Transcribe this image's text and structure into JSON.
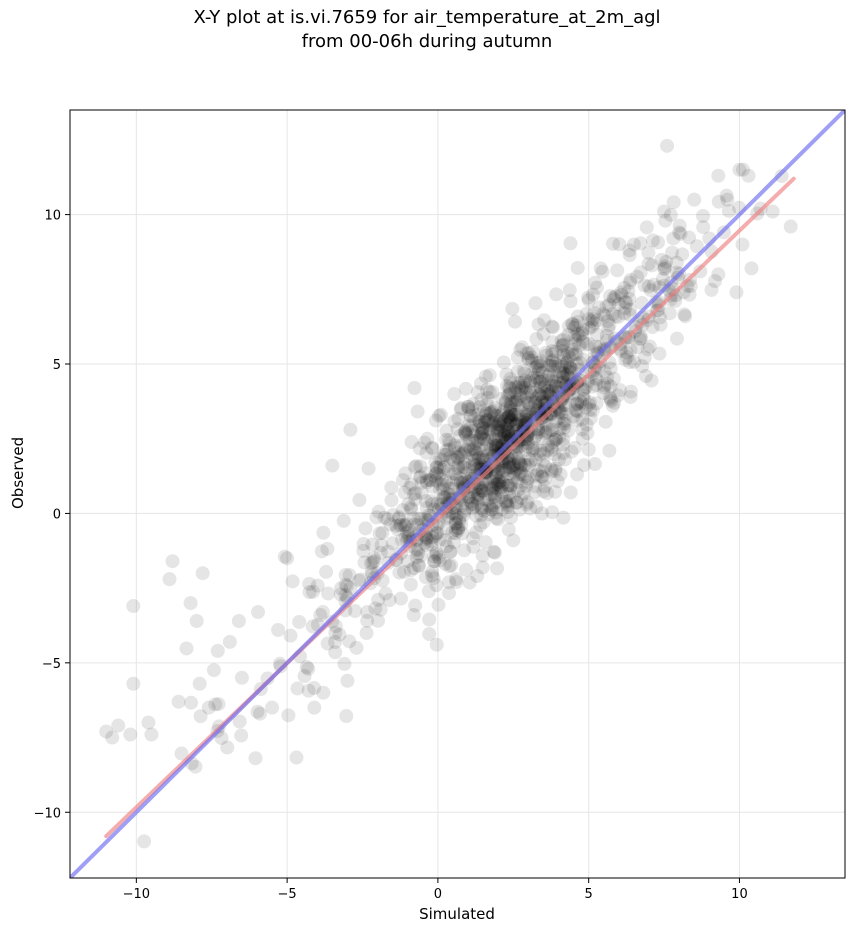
{
  "chart_data": {
    "type": "scatter",
    "title": "X-Y plot at is.vi.7659 for air_temperature_at_2m_agl",
    "subtitle": "from 00-06h during autumn",
    "xlabel": "Simulated",
    "ylabel": "Observed",
    "xlim": [
      -12.2,
      13.5
    ],
    "ylim": [
      -12.2,
      13.5
    ],
    "xticks": [
      -10,
      -5,
      0,
      5,
      10
    ],
    "yticks": [
      -10,
      -5,
      0,
      5,
      10
    ],
    "xtick_labels": [
      "−10",
      "−5",
      "0",
      "5",
      "10"
    ],
    "ytick_labels": [
      "−10",
      "−5",
      "0",
      "5",
      "10"
    ],
    "grid": true,
    "colors": {
      "points": "#000000",
      "fit_line": "#f08080",
      "identity_line": "#6b6bef"
    },
    "points_summary": {
      "sample_points": [
        [
          -11.0,
          -7.3
        ],
        [
          -10.8,
          -7.5
        ],
        [
          -10.6,
          -7.1
        ],
        [
          -10.2,
          -7.4
        ],
        [
          -10.1,
          -3.1
        ],
        [
          -10.1,
          -5.7
        ],
        [
          -9.6,
          -7.0
        ],
        [
          -9.5,
          -7.4
        ],
        [
          -8.8,
          -1.6
        ],
        [
          -8.9,
          -2.2
        ],
        [
          -8.2,
          -3.0
        ],
        [
          -8.0,
          -3.6
        ],
        [
          -7.9,
          -5.7
        ],
        [
          -8.6,
          -6.3
        ],
        [
          -7.6,
          -6.5
        ],
        [
          -7.3,
          -4.6
        ],
        [
          -6.6,
          -3.6
        ],
        [
          -6.9,
          -4.3
        ],
        [
          -6.5,
          -5.5
        ],
        [
          -7.8,
          -2.0
        ],
        [
          -5.9,
          -6.7
        ],
        [
          -5.5,
          -6.5
        ],
        [
          -5.0,
          -1.5
        ],
        [
          -5.3,
          -3.9
        ],
        [
          -4.3,
          -5.2
        ],
        [
          -4.1,
          -6.5
        ],
        [
          -3.8,
          -6.0
        ],
        [
          -3.9,
          -3.4
        ],
        [
          -3.4,
          -4.0
        ],
        [
          -3.0,
          -5.6
        ],
        [
          -2.7,
          -4.5
        ],
        [
          -2.9,
          -2.5
        ],
        [
          -3.5,
          1.6
        ],
        [
          -2.9,
          2.8
        ],
        [
          -2.3,
          1.5
        ],
        [
          -2.4,
          -0.5
        ],
        [
          -2.0,
          -2.0
        ],
        [
          -1.6,
          -2.9
        ],
        [
          -1.5,
          -1.0
        ],
        [
          -1.1,
          0.7
        ],
        [
          -1.0,
          -1.6
        ],
        [
          -0.8,
          -3.4
        ],
        [
          -0.6,
          1.2
        ],
        [
          -0.4,
          -0.6
        ],
        [
          -0.3,
          -2.6
        ],
        [
          0.1,
          3.3
        ],
        [
          0.1,
          0.3
        ],
        [
          0.3,
          -1.1
        ],
        [
          0.5,
          1.8
        ],
        [
          0.6,
          -2.2
        ],
        [
          0.9,
          0.9
        ],
        [
          1.2,
          2.6
        ],
        [
          1.4,
          -0.4
        ],
        [
          1.6,
          1.5
        ],
        [
          1.8,
          3.4
        ],
        [
          2.0,
          -0.2
        ],
        [
          2.1,
          0.9
        ],
        [
          2.2,
          2.0
        ],
        [
          2.4,
          4.5
        ],
        [
          2.5,
          -0.9
        ],
        [
          2.7,
          1.3
        ],
        [
          2.9,
          3.0
        ],
        [
          3.0,
          5.2
        ],
        [
          3.2,
          0.7
        ],
        [
          3.4,
          2.1
        ],
        [
          3.5,
          6.0
        ],
        [
          3.7,
          4.0
        ],
        [
          3.9,
          1.5
        ],
        [
          4.1,
          5.6
        ],
        [
          4.2,
          3.1
        ],
        [
          4.4,
          7.1
        ],
        [
          4.6,
          4.4
        ],
        [
          4.8,
          2.5
        ],
        [
          5.0,
          6.5
        ],
        [
          5.2,
          4.8
        ],
        [
          5.4,
          8.2
        ],
        [
          5.6,
          5.5
        ],
        [
          5.8,
          3.6
        ],
        [
          6.0,
          7.0
        ],
        [
          6.2,
          5.9
        ],
        [
          6.5,
          9.0
        ],
        [
          6.7,
          6.4
        ],
        [
          6.9,
          4.6
        ],
        [
          7.1,
          8.3
        ],
        [
          7.3,
          6.8
        ],
        [
          7.6,
          12.3
        ],
        [
          7.5,
          10.1
        ],
        [
          7.8,
          7.5
        ],
        [
          8.0,
          9.4
        ],
        [
          8.2,
          6.6
        ],
        [
          8.5,
          10.5
        ],
        [
          8.7,
          8.1
        ],
        [
          9.0,
          9.2
        ],
        [
          9.3,
          8.0
        ],
        [
          9.6,
          10.5
        ],
        [
          9.9,
          7.4
        ],
        [
          10.1,
          9.0
        ],
        [
          10.4,
          8.2
        ],
        [
          10.7,
          10.2
        ],
        [
          11.1,
          10.1
        ],
        [
          11.7,
          9.6
        ],
        [
          10.0,
          11.5
        ],
        [
          9.3,
          11.3
        ],
        [
          10.3,
          11.3
        ]
      ]
    },
    "series": [
      {
        "name": "",
        "type": "line",
        "x": [
          -11.0,
          11.8
        ],
        "y": [
          -10.8,
          11.2
        ]
      },
      {
        "name": "",
        "type": "line",
        "x": [
          -12.2,
          13.5
        ],
        "y": [
          -12.2,
          13.5
        ]
      }
    ]
  }
}
